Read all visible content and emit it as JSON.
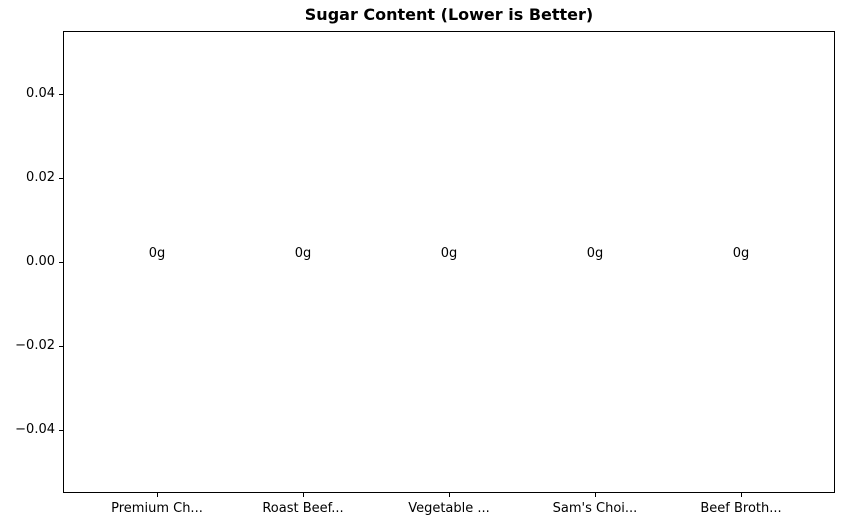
{
  "chart_data": {
    "type": "bar",
    "title": "Sugar Content (Lower is Better)",
    "categories": [
      "Premium Ch...",
      "Roast Beef...",
      "Vegetable ...",
      "Sam's Choi...",
      "Beef Broth..."
    ],
    "values": [
      0,
      0,
      0,
      0,
      0
    ],
    "value_labels": [
      "0g",
      "0g",
      "0g",
      "0g",
      "0g"
    ],
    "xlabel": "",
    "ylabel": "",
    "yticks": [
      0.04,
      0.02,
      0,
      -0.02,
      -0.04
    ],
    "ytick_labels": [
      "0.04",
      "0.02",
      "0.00",
      "−0.02",
      "−0.04"
    ],
    "ylim": [
      -0.055,
      0.055
    ],
    "xlim": [
      -0.64,
      4.64
    ],
    "grid": false,
    "legend": false,
    "colors": {
      "text": "#000000",
      "spine": "#000000",
      "background": "#ffffff"
    }
  }
}
